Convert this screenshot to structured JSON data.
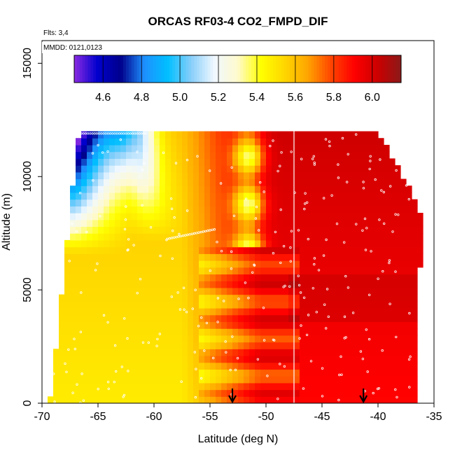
{
  "chart_data": {
    "type": "heatmap",
    "title": "ORCAS RF03-4 CO2_FMPD_DIF",
    "annotations": [
      "Flts: 3,4",
      "MMDD: 0121,0123"
    ],
    "xlabel": "Latitude (deg N)",
    "ylabel": "Altitude (m)",
    "xlim": [
      -70,
      -35
    ],
    "ylim": [
      0,
      16000
    ],
    "xticks": [
      -70,
      -65,
      -60,
      -55,
      -50,
      -45,
      -40,
      -35
    ],
    "yticks": [
      0,
      5000,
      10000,
      15000
    ],
    "colorbar": {
      "ticks": [
        4.6,
        4.8,
        5.0,
        5.2,
        5.4,
        5.6,
        5.8,
        6.0
      ],
      "range": [
        4.45,
        6.15
      ],
      "colors": [
        "#8a2be2",
        "#0000cd",
        "#00008b",
        "#1e90ff",
        "#00bfff",
        "#87cefa",
        "#f0f8ff",
        "#fffacd",
        "#ffff00",
        "#ffd700",
        "#ffa500",
        "#ff4500",
        "#ff0000",
        "#cc0000",
        "#8b1a1a"
      ]
    },
    "vertical_line_lat": -47.5,
    "arrow_lats": [
      -53,
      -41.3
    ]
  }
}
